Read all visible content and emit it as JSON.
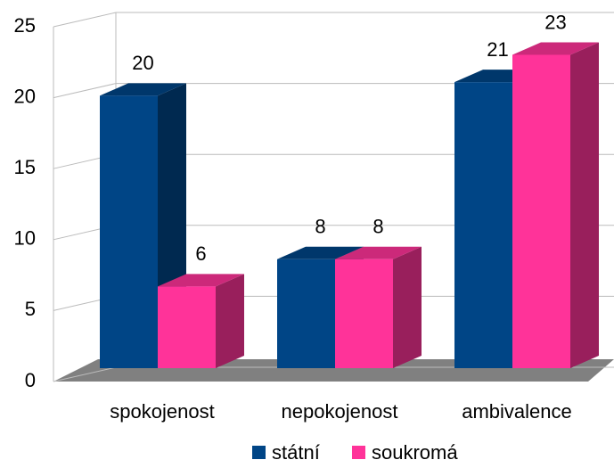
{
  "chart_data": {
    "type": "bar3d",
    "categories": [
      "spokojenost",
      "nepokojenost",
      "ambivalence"
    ],
    "series": [
      {
        "name": "státní",
        "color": "#004586",
        "values": [
          20,
          8,
          21
        ]
      },
      {
        "name": "soukromá",
        "color": "#ff3399",
        "values": [
          6,
          8,
          23
        ]
      }
    ],
    "ylim": [
      0,
      25
    ],
    "yticks": [
      0,
      5,
      10,
      15,
      20,
      25
    ],
    "grid": true,
    "legend": "bottom"
  }
}
